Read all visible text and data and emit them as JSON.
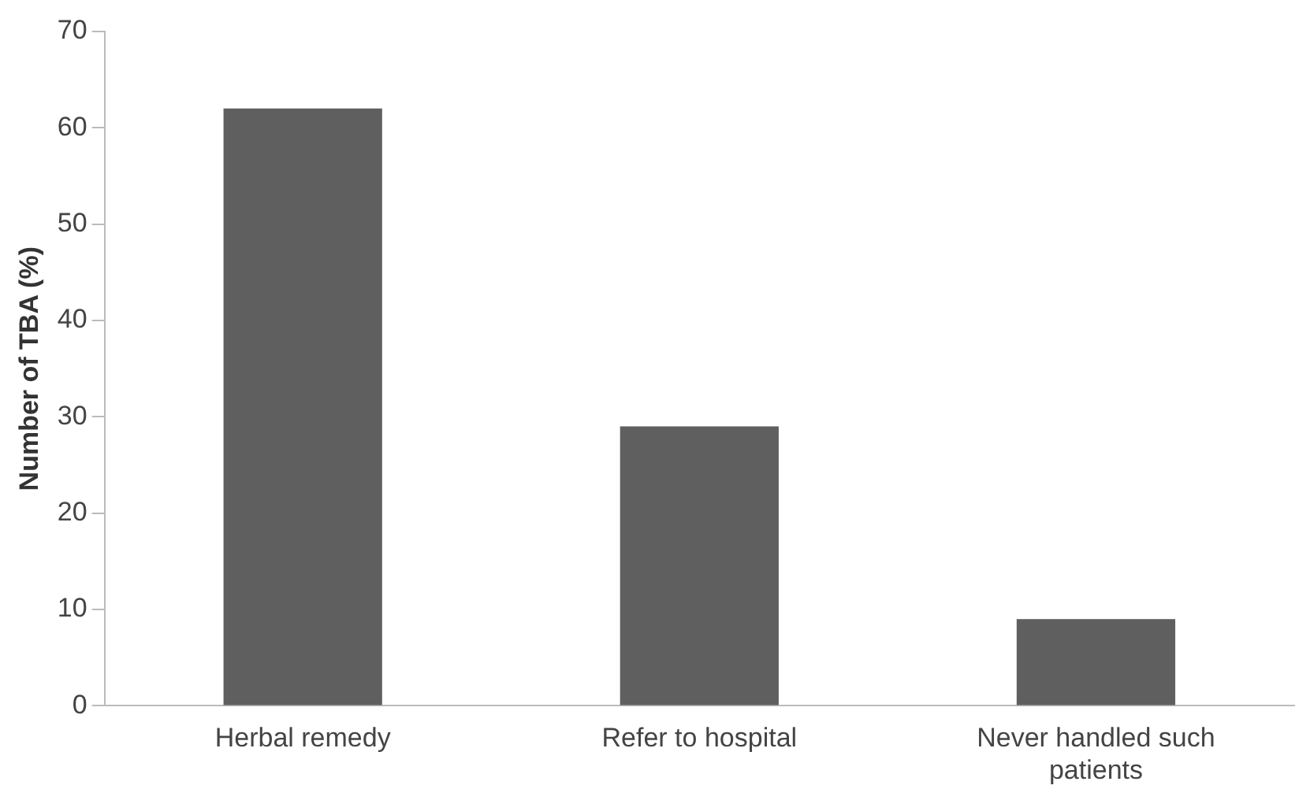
{
  "chart_data": {
    "type": "bar",
    "ylabel": "Number of TBA (%)",
    "categories": [
      "Herbal remedy",
      "Refer to hospital",
      "Never handled such patients"
    ],
    "values": [
      62,
      29,
      9
    ],
    "color": "#5f5f5f",
    "ylim": [
      0,
      70
    ],
    "yticks": [
      0,
      10,
      20,
      30,
      40,
      50,
      60,
      70
    ],
    "grid": false,
    "legend": false
  }
}
